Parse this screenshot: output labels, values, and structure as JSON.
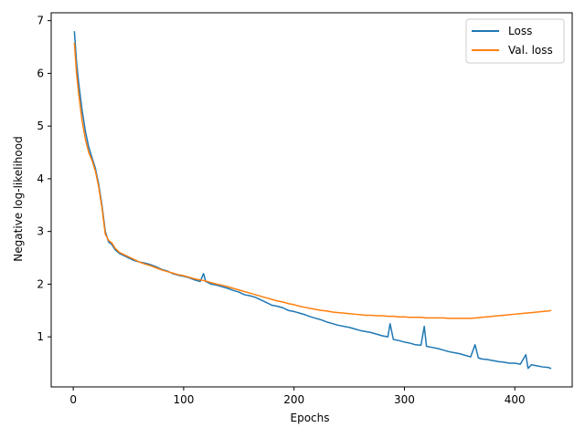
{
  "chart_data": {
    "type": "line",
    "title": "",
    "xlabel": "Epochs",
    "ylabel": "Negative log-likelihood",
    "xlim": [
      -20,
      452
    ],
    "ylim": [
      0.05,
      7.15
    ],
    "xticks": [
      0,
      100,
      200,
      300,
      400
    ],
    "yticks": [
      1,
      2,
      3,
      4,
      5,
      6,
      7
    ],
    "grid": false,
    "legend_position": "top-right",
    "colors": {
      "Loss": "#1f77b4",
      "Val. loss": "#ff7f0e"
    },
    "series": [
      {
        "name": "Loss",
        "x": [
          1,
          3,
          5,
          8,
          11,
          14,
          17,
          20,
          23,
          26,
          29,
          32,
          35,
          38,
          42,
          46,
          50,
          55,
          60,
          65,
          70,
          75,
          80,
          85,
          90,
          95,
          100,
          105,
          110,
          115,
          118,
          120,
          125,
          130,
          135,
          140,
          145,
          150,
          155,
          160,
          165,
          170,
          175,
          180,
          185,
          190,
          195,
          200,
          205,
          210,
          215,
          220,
          225,
          230,
          235,
          240,
          245,
          250,
          255,
          260,
          265,
          270,
          275,
          280,
          285,
          287,
          290,
          295,
          300,
          305,
          310,
          315,
          318,
          320,
          325,
          330,
          335,
          340,
          345,
          350,
          355,
          360,
          364,
          367,
          370,
          375,
          380,
          385,
          390,
          395,
          400,
          405,
          410,
          412,
          415,
          420,
          425,
          430,
          433
        ],
        "values": [
          6.8,
          6.2,
          5.8,
          5.3,
          4.9,
          4.6,
          4.4,
          4.2,
          3.9,
          3.5,
          3.0,
          2.8,
          2.75,
          2.65,
          2.58,
          2.54,
          2.5,
          2.45,
          2.42,
          2.4,
          2.37,
          2.33,
          2.28,
          2.25,
          2.2,
          2.17,
          2.15,
          2.12,
          2.08,
          2.05,
          2.2,
          2.05,
          2.0,
          1.98,
          1.95,
          1.92,
          1.88,
          1.85,
          1.8,
          1.78,
          1.75,
          1.7,
          1.65,
          1.6,
          1.58,
          1.55,
          1.5,
          1.48,
          1.45,
          1.42,
          1.38,
          1.35,
          1.32,
          1.28,
          1.25,
          1.22,
          1.2,
          1.18,
          1.15,
          1.12,
          1.1,
          1.08,
          1.05,
          1.02,
          1.0,
          1.25,
          0.95,
          0.93,
          0.9,
          0.88,
          0.85,
          0.84,
          1.2,
          0.82,
          0.8,
          0.78,
          0.75,
          0.72,
          0.7,
          0.68,
          0.65,
          0.62,
          0.85,
          0.6,
          0.58,
          0.57,
          0.55,
          0.53,
          0.52,
          0.5,
          0.5,
          0.48,
          0.66,
          0.4,
          0.47,
          0.45,
          0.43,
          0.42,
          0.4
        ]
      },
      {
        "name": "Val. loss",
        "x": [
          1,
          3,
          5,
          8,
          11,
          14,
          17,
          20,
          23,
          26,
          29,
          32,
          35,
          38,
          42,
          46,
          50,
          55,
          60,
          65,
          70,
          75,
          80,
          85,
          90,
          95,
          100,
          105,
          110,
          115,
          120,
          125,
          130,
          135,
          140,
          145,
          150,
          155,
          160,
          165,
          170,
          175,
          180,
          185,
          190,
          195,
          200,
          205,
          210,
          215,
          220,
          225,
          230,
          235,
          240,
          245,
          250,
          255,
          260,
          265,
          270,
          275,
          280,
          285,
          290,
          295,
          300,
          305,
          310,
          315,
          320,
          325,
          330,
          335,
          340,
          345,
          350,
          355,
          360,
          365,
          370,
          375,
          380,
          385,
          390,
          395,
          400,
          405,
          410,
          415,
          420,
          425,
          430,
          433
        ],
        "values": [
          6.58,
          6.0,
          5.6,
          5.1,
          4.75,
          4.5,
          4.35,
          4.15,
          3.85,
          3.45,
          2.95,
          2.83,
          2.78,
          2.68,
          2.6,
          2.56,
          2.52,
          2.47,
          2.42,
          2.38,
          2.35,
          2.31,
          2.27,
          2.24,
          2.21,
          2.18,
          2.16,
          2.13,
          2.1,
          2.08,
          2.06,
          2.03,
          2.0,
          1.98,
          1.95,
          1.92,
          1.89,
          1.86,
          1.83,
          1.8,
          1.77,
          1.74,
          1.71,
          1.68,
          1.66,
          1.63,
          1.61,
          1.58,
          1.56,
          1.54,
          1.52,
          1.5,
          1.49,
          1.47,
          1.46,
          1.45,
          1.44,
          1.43,
          1.42,
          1.41,
          1.41,
          1.4,
          1.4,
          1.39,
          1.39,
          1.38,
          1.38,
          1.37,
          1.37,
          1.37,
          1.36,
          1.36,
          1.36,
          1.36,
          1.35,
          1.35,
          1.35,
          1.35,
          1.35,
          1.36,
          1.37,
          1.38,
          1.39,
          1.4,
          1.41,
          1.42,
          1.43,
          1.44,
          1.45,
          1.46,
          1.47,
          1.48,
          1.49,
          1.5
        ]
      }
    ]
  }
}
